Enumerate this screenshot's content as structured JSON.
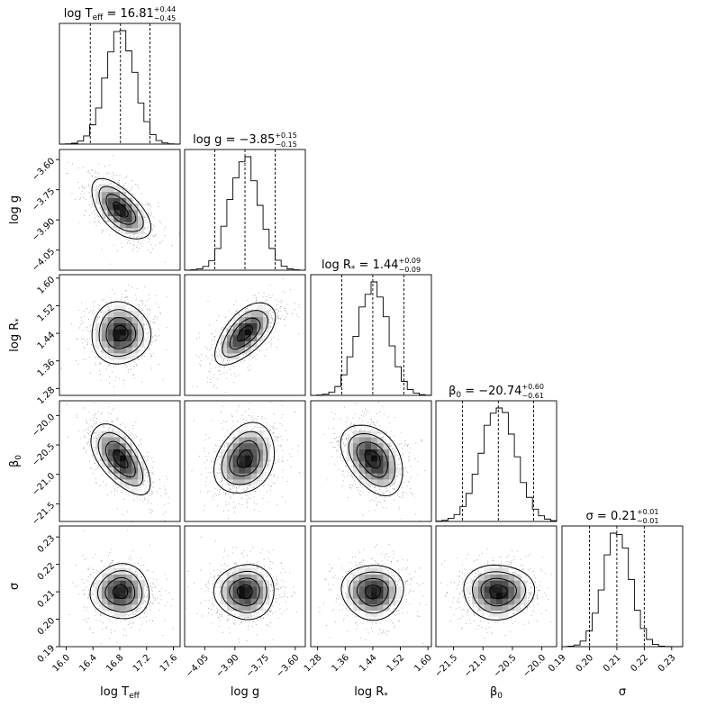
{
  "chart_data": {
    "type": "corner",
    "parameters": [
      {
        "key": "logTeff",
        "label_main": "log T",
        "label_sub": "eff",
        "range": [
          15.9,
          17.7
        ],
        "ticks": [
          16.0,
          16.4,
          16.8,
          17.2,
          17.6
        ],
        "tick_labels": [
          "16.0",
          "16.4",
          "16.8",
          "17.2",
          "17.6"
        ],
        "median": 16.81,
        "plus": 0.44,
        "minus": 0.45,
        "title_value": "16.81",
        "title_plus": "+0.44",
        "title_minus": "−0.45",
        "sigma": 0.22
      },
      {
        "key": "logg",
        "label_main": "log g",
        "label_sub": "",
        "range": [
          -4.15,
          -3.55
        ],
        "ticks": [
          -4.05,
          -3.9,
          -3.75,
          -3.6
        ],
        "tick_labels": [
          "−4.05",
          "−3.90",
          "−3.75",
          "−3.60"
        ],
        "median": -3.85,
        "plus": 0.15,
        "minus": 0.15,
        "title_value": "−3.85",
        "title_plus": "+0.15",
        "title_minus": "−0.15",
        "sigma": 0.075
      },
      {
        "key": "logRstar",
        "label_main": "log R",
        "label_sub": "*",
        "range": [
          1.26,
          1.61
        ],
        "ticks": [
          1.28,
          1.36,
          1.44,
          1.52,
          1.6
        ],
        "tick_labels": [
          "1.28",
          "1.36",
          "1.44",
          "1.52",
          "1.60"
        ],
        "median": 1.44,
        "plus": 0.09,
        "minus": 0.09,
        "title_value": "1.44",
        "title_plus": "+0.09",
        "title_minus": "−0.09",
        "sigma": 0.045
      },
      {
        "key": "beta0",
        "label_main": "β",
        "label_sub": "0",
        "range": [
          -21.8,
          -19.75
        ],
        "ticks": [
          -21.5,
          -21.0,
          -20.5,
          -20.0
        ],
        "tick_labels": [
          "−21.5",
          "−21.0",
          "−20.5",
          "−20.0"
        ],
        "median": -20.74,
        "plus": 0.6,
        "minus": 0.61,
        "title_value": "−20.74",
        "title_plus": "+0.60",
        "title_minus": "−0.61",
        "sigma": 0.3
      },
      {
        "key": "sigma",
        "label_main": "σ",
        "label_sub": "",
        "range": [
          0.19,
          0.234
        ],
        "ticks": [
          0.19,
          0.2,
          0.21,
          0.22,
          0.23
        ],
        "tick_labels": [
          "0.19",
          "0.20",
          "0.21",
          "0.22",
          "0.23"
        ],
        "median": 0.21,
        "plus": 0.01,
        "minus": 0.01,
        "title_value": "0.21",
        "title_plus": "+0.01",
        "title_minus": "−0.01",
        "sigma": 0.005
      }
    ],
    "correlations": [
      {
        "row": 1,
        "col": 0,
        "rho": -0.6
      },
      {
        "row": 2,
        "col": 0,
        "rho": 0.0
      },
      {
        "row": 2,
        "col": 1,
        "rho": 0.6
      },
      {
        "row": 3,
        "col": 0,
        "rho": -0.6
      },
      {
        "row": 3,
        "col": 1,
        "rho": 0.25
      },
      {
        "row": 3,
        "col": 2,
        "rho": -0.4
      },
      {
        "row": 4,
        "col": 0,
        "rho": 0.0
      },
      {
        "row": 4,
        "col": 1,
        "rho": 0.0
      },
      {
        "row": 4,
        "col": 2,
        "rho": 0.0
      },
      {
        "row": 4,
        "col": 3,
        "rho": 0.0
      }
    ],
    "quantile_lines": "dashed at 16th, 50th, 84th percentiles",
    "grid": false
  }
}
